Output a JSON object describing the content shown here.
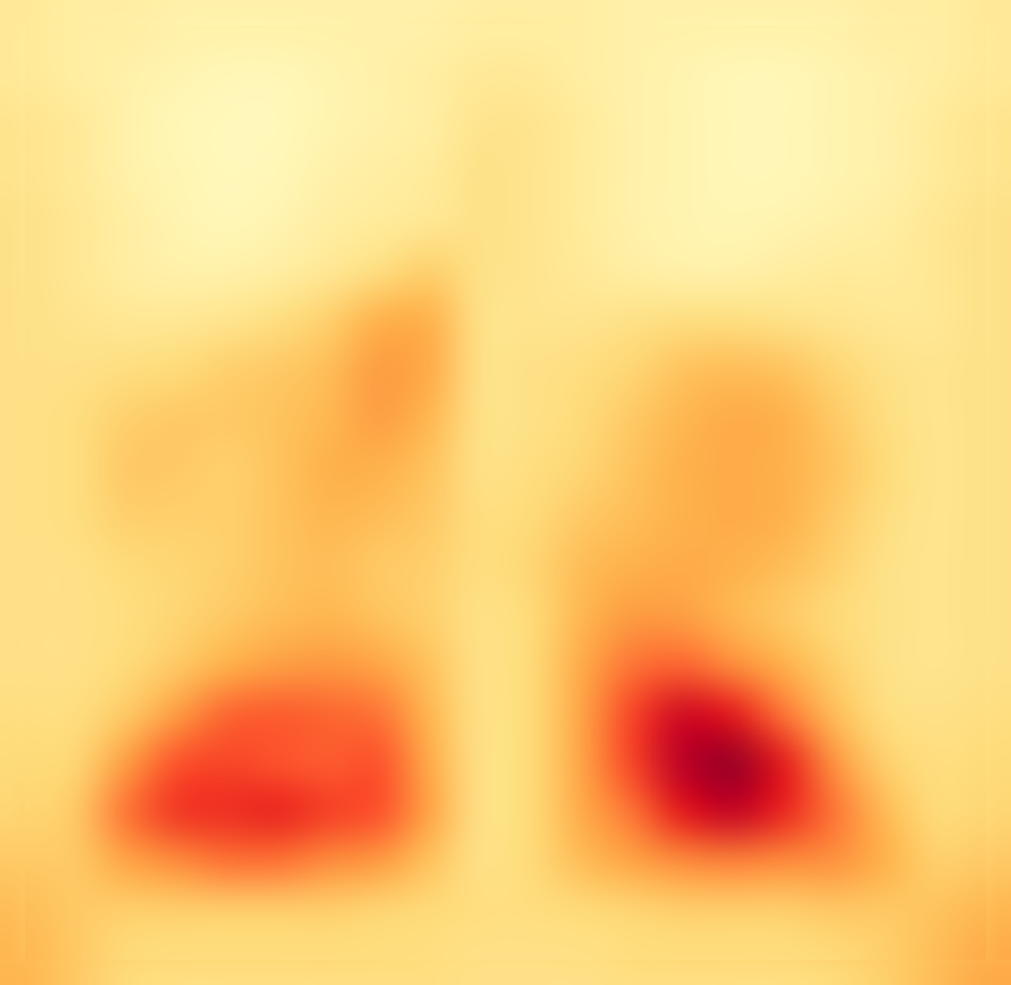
{
  "chart_data": {
    "type": "heatmap",
    "grid": false,
    "tick_labels": false,
    "zlim": [
      0,
      1
    ],
    "cells": [
      [
        0.15,
        0.12,
        0.12,
        0.1,
        0.1,
        0.1,
        0.1,
        0.1,
        0.1,
        0.12,
        0.12,
        0.12,
        0.1,
        0.1,
        0.1,
        0.1,
        0.1,
        0.12,
        0.12,
        0.15
      ],
      [
        0.15,
        0.12,
        0.1,
        0.08,
        0.06,
        0.06,
        0.08,
        0.1,
        0.12,
        0.15,
        0.15,
        0.12,
        0.1,
        0.08,
        0.06,
        0.06,
        0.08,
        0.1,
        0.12,
        0.15
      ],
      [
        0.18,
        0.15,
        0.1,
        0.06,
        0.05,
        0.05,
        0.08,
        0.1,
        0.12,
        0.18,
        0.18,
        0.14,
        0.1,
        0.08,
        0.06,
        0.06,
        0.08,
        0.1,
        0.14,
        0.18
      ],
      [
        0.18,
        0.15,
        0.1,
        0.07,
        0.05,
        0.06,
        0.1,
        0.12,
        0.14,
        0.2,
        0.18,
        0.14,
        0.1,
        0.08,
        0.06,
        0.06,
        0.08,
        0.1,
        0.14,
        0.18
      ],
      [
        0.2,
        0.16,
        0.12,
        0.08,
        0.06,
        0.08,
        0.12,
        0.14,
        0.16,
        0.2,
        0.18,
        0.14,
        0.1,
        0.08,
        0.07,
        0.08,
        0.1,
        0.12,
        0.16,
        0.2
      ],
      [
        0.2,
        0.16,
        0.12,
        0.1,
        0.1,
        0.12,
        0.16,
        0.22,
        0.28,
        0.2,
        0.18,
        0.15,
        0.12,
        0.1,
        0.1,
        0.12,
        0.14,
        0.14,
        0.16,
        0.2
      ],
      [
        0.2,
        0.18,
        0.16,
        0.16,
        0.18,
        0.22,
        0.28,
        0.38,
        0.38,
        0.2,
        0.18,
        0.18,
        0.2,
        0.22,
        0.22,
        0.2,
        0.18,
        0.16,
        0.16,
        0.2
      ],
      [
        0.2,
        0.2,
        0.22,
        0.24,
        0.28,
        0.3,
        0.34,
        0.45,
        0.4,
        0.2,
        0.2,
        0.22,
        0.26,
        0.32,
        0.34,
        0.32,
        0.26,
        0.2,
        0.18,
        0.2
      ],
      [
        0.2,
        0.22,
        0.28,
        0.3,
        0.3,
        0.32,
        0.36,
        0.44,
        0.36,
        0.2,
        0.2,
        0.24,
        0.3,
        0.36,
        0.4,
        0.38,
        0.3,
        0.22,
        0.18,
        0.2
      ],
      [
        0.2,
        0.22,
        0.3,
        0.3,
        0.28,
        0.32,
        0.38,
        0.38,
        0.32,
        0.2,
        0.22,
        0.26,
        0.32,
        0.38,
        0.4,
        0.38,
        0.32,
        0.24,
        0.18,
        0.2
      ],
      [
        0.2,
        0.22,
        0.28,
        0.28,
        0.28,
        0.32,
        0.36,
        0.34,
        0.3,
        0.22,
        0.24,
        0.3,
        0.34,
        0.38,
        0.4,
        0.38,
        0.3,
        0.22,
        0.18,
        0.2
      ],
      [
        0.2,
        0.2,
        0.24,
        0.26,
        0.28,
        0.32,
        0.34,
        0.3,
        0.28,
        0.22,
        0.26,
        0.34,
        0.38,
        0.4,
        0.38,
        0.34,
        0.28,
        0.2,
        0.18,
        0.2
      ],
      [
        0.2,
        0.2,
        0.22,
        0.26,
        0.3,
        0.34,
        0.36,
        0.32,
        0.28,
        0.2,
        0.24,
        0.36,
        0.45,
        0.44,
        0.36,
        0.3,
        0.24,
        0.2,
        0.18,
        0.2
      ],
      [
        0.2,
        0.2,
        0.24,
        0.3,
        0.38,
        0.44,
        0.46,
        0.42,
        0.32,
        0.2,
        0.24,
        0.4,
        0.55,
        0.58,
        0.5,
        0.38,
        0.28,
        0.2,
        0.18,
        0.2
      ],
      [
        0.22,
        0.22,
        0.3,
        0.45,
        0.58,
        0.6,
        0.58,
        0.55,
        0.36,
        0.2,
        0.24,
        0.42,
        0.65,
        0.82,
        0.75,
        0.55,
        0.34,
        0.22,
        0.2,
        0.22
      ],
      [
        0.24,
        0.26,
        0.45,
        0.62,
        0.65,
        0.62,
        0.6,
        0.62,
        0.4,
        0.2,
        0.24,
        0.42,
        0.65,
        0.88,
        0.95,
        0.75,
        0.48,
        0.28,
        0.22,
        0.24
      ],
      [
        0.26,
        0.3,
        0.55,
        0.68,
        0.7,
        0.72,
        0.66,
        0.62,
        0.42,
        0.2,
        0.24,
        0.4,
        0.55,
        0.75,
        0.85,
        0.72,
        0.55,
        0.35,
        0.24,
        0.26
      ],
      [
        0.3,
        0.3,
        0.42,
        0.5,
        0.55,
        0.55,
        0.5,
        0.45,
        0.32,
        0.2,
        0.24,
        0.34,
        0.42,
        0.5,
        0.52,
        0.5,
        0.48,
        0.38,
        0.28,
        0.3
      ],
      [
        0.34,
        0.3,
        0.28,
        0.28,
        0.28,
        0.28,
        0.28,
        0.26,
        0.24,
        0.22,
        0.22,
        0.24,
        0.26,
        0.28,
        0.28,
        0.28,
        0.3,
        0.3,
        0.32,
        0.36
      ],
      [
        0.36,
        0.3,
        0.24,
        0.22,
        0.22,
        0.22,
        0.22,
        0.22,
        0.22,
        0.2,
        0.2,
        0.2,
        0.22,
        0.22,
        0.22,
        0.22,
        0.24,
        0.28,
        0.34,
        0.4
      ]
    ]
  }
}
